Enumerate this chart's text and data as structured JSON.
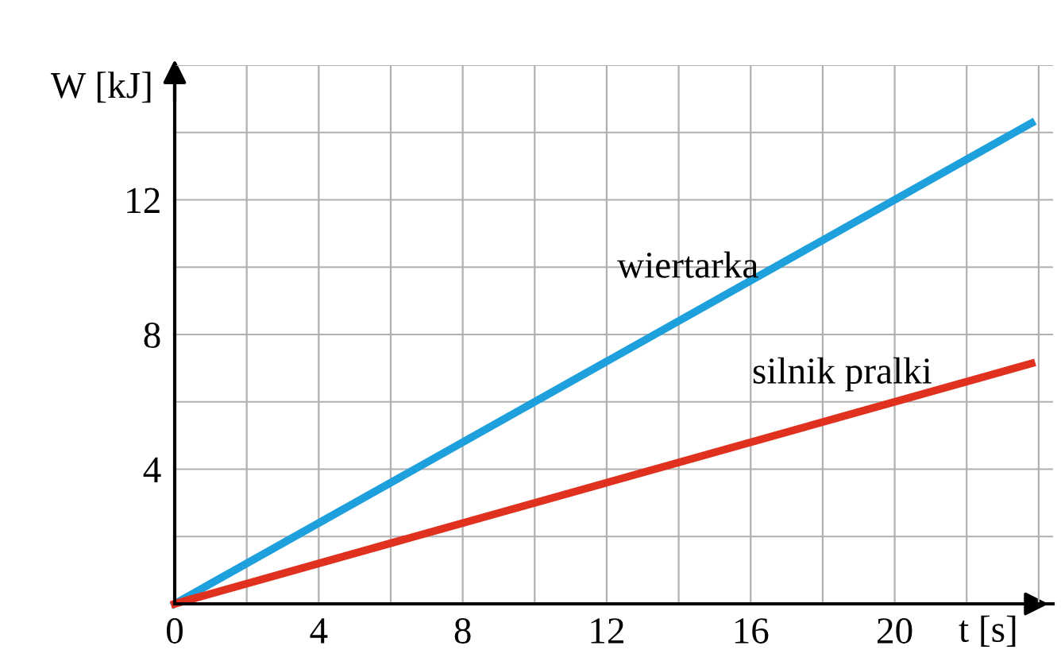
{
  "chart_data": {
    "type": "line",
    "xlabel": "t [s]",
    "ylabel": "W [kJ]",
    "x": [
      0,
      23.8
    ],
    "series": [
      {
        "name": "wiertarka",
        "color": "#1ea0dc",
        "values": [
          0,
          14.28
        ]
      },
      {
        "name": "silnik pralki",
        "color": "#e0301e",
        "values": [
          0,
          7.14
        ]
      }
    ],
    "xlim": [
      0,
      24.4
    ],
    "ylim": [
      0,
      16
    ],
    "xticks": [
      {
        "value": 0,
        "label": "0"
      },
      {
        "value": 2,
        "label": null
      },
      4,
      {
        "value": 6,
        "label": null
      },
      8,
      {
        "value": 10,
        "label": null
      },
      12,
      {
        "value": 14,
        "label": null
      },
      16,
      {
        "value": 18,
        "label": null
      },
      20,
      {
        "value": 22,
        "label": null
      },
      {
        "value": 24,
        "label": null
      }
    ],
    "yticks": [
      {
        "value": 0,
        "label": null
      },
      {
        "value": 2,
        "label": null
      },
      4,
      {
        "value": 6,
        "label": null
      },
      8,
      {
        "value": 10,
        "label": null
      },
      12,
      {
        "value": 14,
        "label": null
      },
      {
        "value": 16,
        "label": null
      }
    ],
    "grid": true,
    "legend": false,
    "marker": "none",
    "line_style": "solid"
  }
}
